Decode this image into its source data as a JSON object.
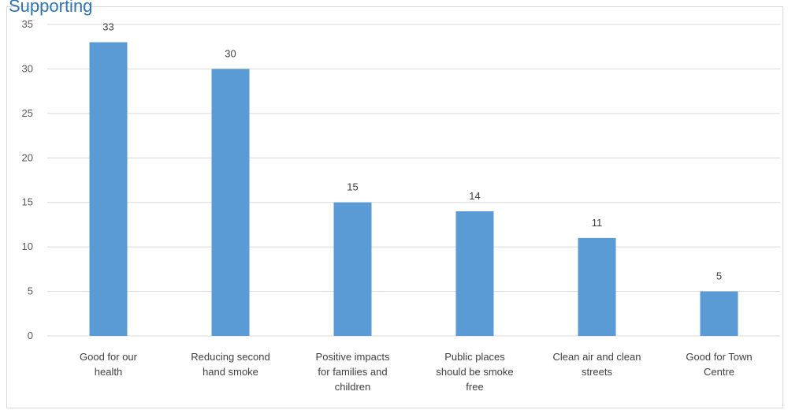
{
  "title_fragment": "Supporting",
  "colors": {
    "bar": "#5b9bd5",
    "grid": "#d9d9d9",
    "axis_text": "#595959",
    "title": "#2e75b6"
  },
  "chart_data": {
    "type": "bar",
    "title": "",
    "xlabel": "",
    "ylabel": "",
    "categories": [
      [
        "Good for our",
        "health"
      ],
      [
        "Reducing second",
        "hand smoke"
      ],
      [
        "Positive impacts",
        "for families and",
        "children"
      ],
      [
        "Public places",
        "should be smoke",
        "free"
      ],
      [
        "Clean air and clean",
        "streets"
      ],
      [
        "Good for Town",
        "Centre"
      ]
    ],
    "values": [
      33,
      30,
      15,
      14,
      11,
      5
    ],
    "ylim": [
      0,
      35
    ],
    "yticks": [
      0,
      5,
      10,
      15,
      20,
      25,
      30,
      35
    ],
    "grid": true,
    "data_labels": true
  }
}
